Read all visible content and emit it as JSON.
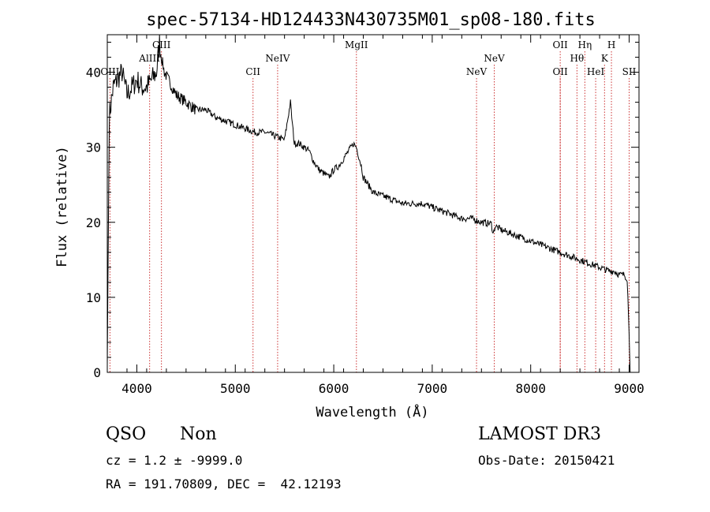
{
  "chart_data": {
    "type": "line",
    "title": "spec-57134-HD124433N430735M01_sp08-180.fits",
    "xlabel": "Wavelength (Å)",
    "ylabel": "Flux (relative)",
    "xlim": [
      3700,
      9100
    ],
    "ylim": [
      0,
      45
    ],
    "xticks": [
      "4000",
      "5000",
      "6000",
      "7000",
      "8000",
      "9000"
    ],
    "yticks": [
      "0",
      "10",
      "20",
      "30",
      "40"
    ],
    "series": [
      {
        "name": "flux",
        "x": [
          3700,
          3720,
          3760,
          3800,
          3850,
          3900,
          3950,
          4000,
          4050,
          4100,
          4150,
          4200,
          4230,
          4250,
          4280,
          4320,
          4400,
          4500,
          4600,
          4700,
          4800,
          4900,
          5000,
          5100,
          5200,
          5300,
          5400,
          5500,
          5560,
          5580,
          5600,
          5650,
          5700,
          5750,
          5800,
          5850,
          5900,
          5950,
          6000,
          6050,
          6100,
          6150,
          6200,
          6230,
          6250,
          6280,
          6300,
          6350,
          6400,
          6500,
          6600,
          6700,
          6800,
          6900,
          7000,
          7100,
          7200,
          7300,
          7400,
          7500,
          7600,
          7620,
          7640,
          7700,
          7800,
          7900,
          8000,
          8100,
          8200,
          8300,
          8400,
          8500,
          8600,
          8700,
          8800,
          8850,
          8900,
          8950,
          8980,
          9000,
          9010
        ],
        "y": [
          1,
          34,
          38,
          39,
          40,
          37,
          38,
          39,
          38,
          38,
          39,
          40,
          44,
          42,
          40,
          39,
          37,
          36,
          35,
          35,
          34,
          33.5,
          33,
          32.5,
          32,
          32,
          31.5,
          31,
          36,
          33,
          30.5,
          30.5,
          30,
          29.5,
          28,
          27,
          26.5,
          26,
          27,
          27.5,
          28.5,
          29.5,
          30.5,
          30,
          29,
          27.5,
          26,
          25,
          24,
          23.5,
          23,
          22.5,
          22.5,
          22.5,
          22,
          21.5,
          21,
          20.5,
          20.5,
          20,
          19.8,
          18.5,
          19.5,
          19,
          18.5,
          18,
          17.5,
          17,
          16.5,
          16,
          15.5,
          15,
          14.5,
          14,
          13.5,
          13.5,
          13,
          13,
          12.5,
          5,
          0
        ]
      }
    ],
    "lines": [
      {
        "name": "OIII",
        "x": 3727,
        "row": 3
      },
      {
        "name": "AlIII",
        "x": 4130,
        "row": 2
      },
      {
        "name": "CIII",
        "x": 4250,
        "row": 1
      },
      {
        "name": "CII",
        "x": 5180,
        "row": 3
      },
      {
        "name": "NeIV",
        "x": 5430,
        "row": 2
      },
      {
        "name": "MgII",
        "x": 6230,
        "row": 1
      },
      {
        "name": "NeV",
        "x": 7450,
        "row": 3
      },
      {
        "name": "NeV",
        "x": 7630,
        "row": 2
      },
      {
        "name": "OII",
        "x": 8300,
        "row": 3
      },
      {
        "name": "OII",
        "x": 8300,
        "row": 1
      },
      {
        "name": "Hθ",
        "x": 8470,
        "row": 2
      },
      {
        "name": "Hη",
        "x": 8550,
        "row": 1
      },
      {
        "name": "HeI",
        "x": 8660,
        "row": 3
      },
      {
        "name": "K",
        "x": 8750,
        "row": 2
      },
      {
        "name": "H",
        "x": 8820,
        "row": 1
      },
      {
        "name": "SII",
        "x": 9000,
        "row": 3
      }
    ]
  },
  "info": {
    "class": "QSO",
    "subclass": "Non",
    "cz_line": "cz = 1.2 ± -9999.0",
    "radec_line": "RA = 191.70809, DEC =  42.12193",
    "survey": "LAMOST DR3",
    "obs_date": "Obs-Date: 20150421"
  },
  "colors": {
    "line": "#000000",
    "marker": "#cc3333"
  }
}
